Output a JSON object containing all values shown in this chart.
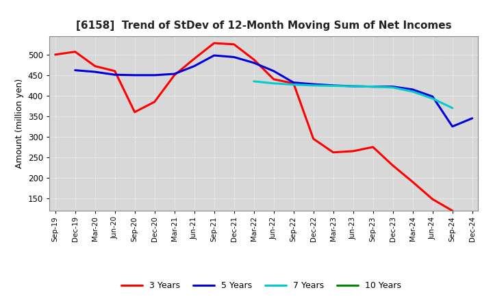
{
  "title": "[6158]  Trend of StDev of 12-Month Moving Sum of Net Incomes",
  "ylabel": "Amount (million yen)",
  "background_color": "#ffffff",
  "plot_bg_color": "#d8d8d8",
  "grid_color": "#ffffff",
  "ylim": [
    120,
    545
  ],
  "yticks": [
    150,
    200,
    250,
    300,
    350,
    400,
    450,
    500
  ],
  "x_labels": [
    "Sep-19",
    "Dec-19",
    "Mar-20",
    "Jun-20",
    "Sep-20",
    "Dec-20",
    "Mar-21",
    "Jun-21",
    "Sep-21",
    "Dec-21",
    "Mar-22",
    "Jun-22",
    "Sep-22",
    "Dec-22",
    "Mar-23",
    "Jun-23",
    "Sep-23",
    "Dec-23",
    "Mar-24",
    "Jun-24",
    "Sep-24",
    "Dec-24"
  ],
  "series": {
    "3 Years": {
      "color": "#ff0000",
      "linewidth": 2.2,
      "values": [
        500,
        507,
        472,
        460,
        360,
        385,
        450,
        490,
        528,
        525,
        488,
        440,
        430,
        295,
        262,
        265,
        275,
        230,
        190,
        148,
        120,
        null
      ]
    },
    "5 Years": {
      "color": "#0000dd",
      "linewidth": 2.2,
      "values": [
        null,
        462,
        458,
        451,
        450,
        450,
        453,
        472,
        498,
        494,
        480,
        460,
        432,
        428,
        425,
        423,
        422,
        422,
        415,
        398,
        325,
        345
      ]
    },
    "7 Years": {
      "color": "#00cccc",
      "linewidth": 2.2,
      "values": [
        null,
        null,
        null,
        null,
        null,
        null,
        null,
        null,
        null,
        null,
        435,
        430,
        427,
        425,
        424,
        423,
        422,
        420,
        410,
        393,
        370,
        null
      ]
    },
    "10 Years": {
      "color": "#008800",
      "linewidth": 2.2,
      "values": [
        null,
        null,
        null,
        null,
        null,
        null,
        null,
        null,
        null,
        null,
        null,
        null,
        null,
        null,
        null,
        null,
        null,
        null,
        null,
        null,
        null,
        null
      ]
    }
  },
  "legend_order": [
    "3 Years",
    "5 Years",
    "7 Years",
    "10 Years"
  ]
}
